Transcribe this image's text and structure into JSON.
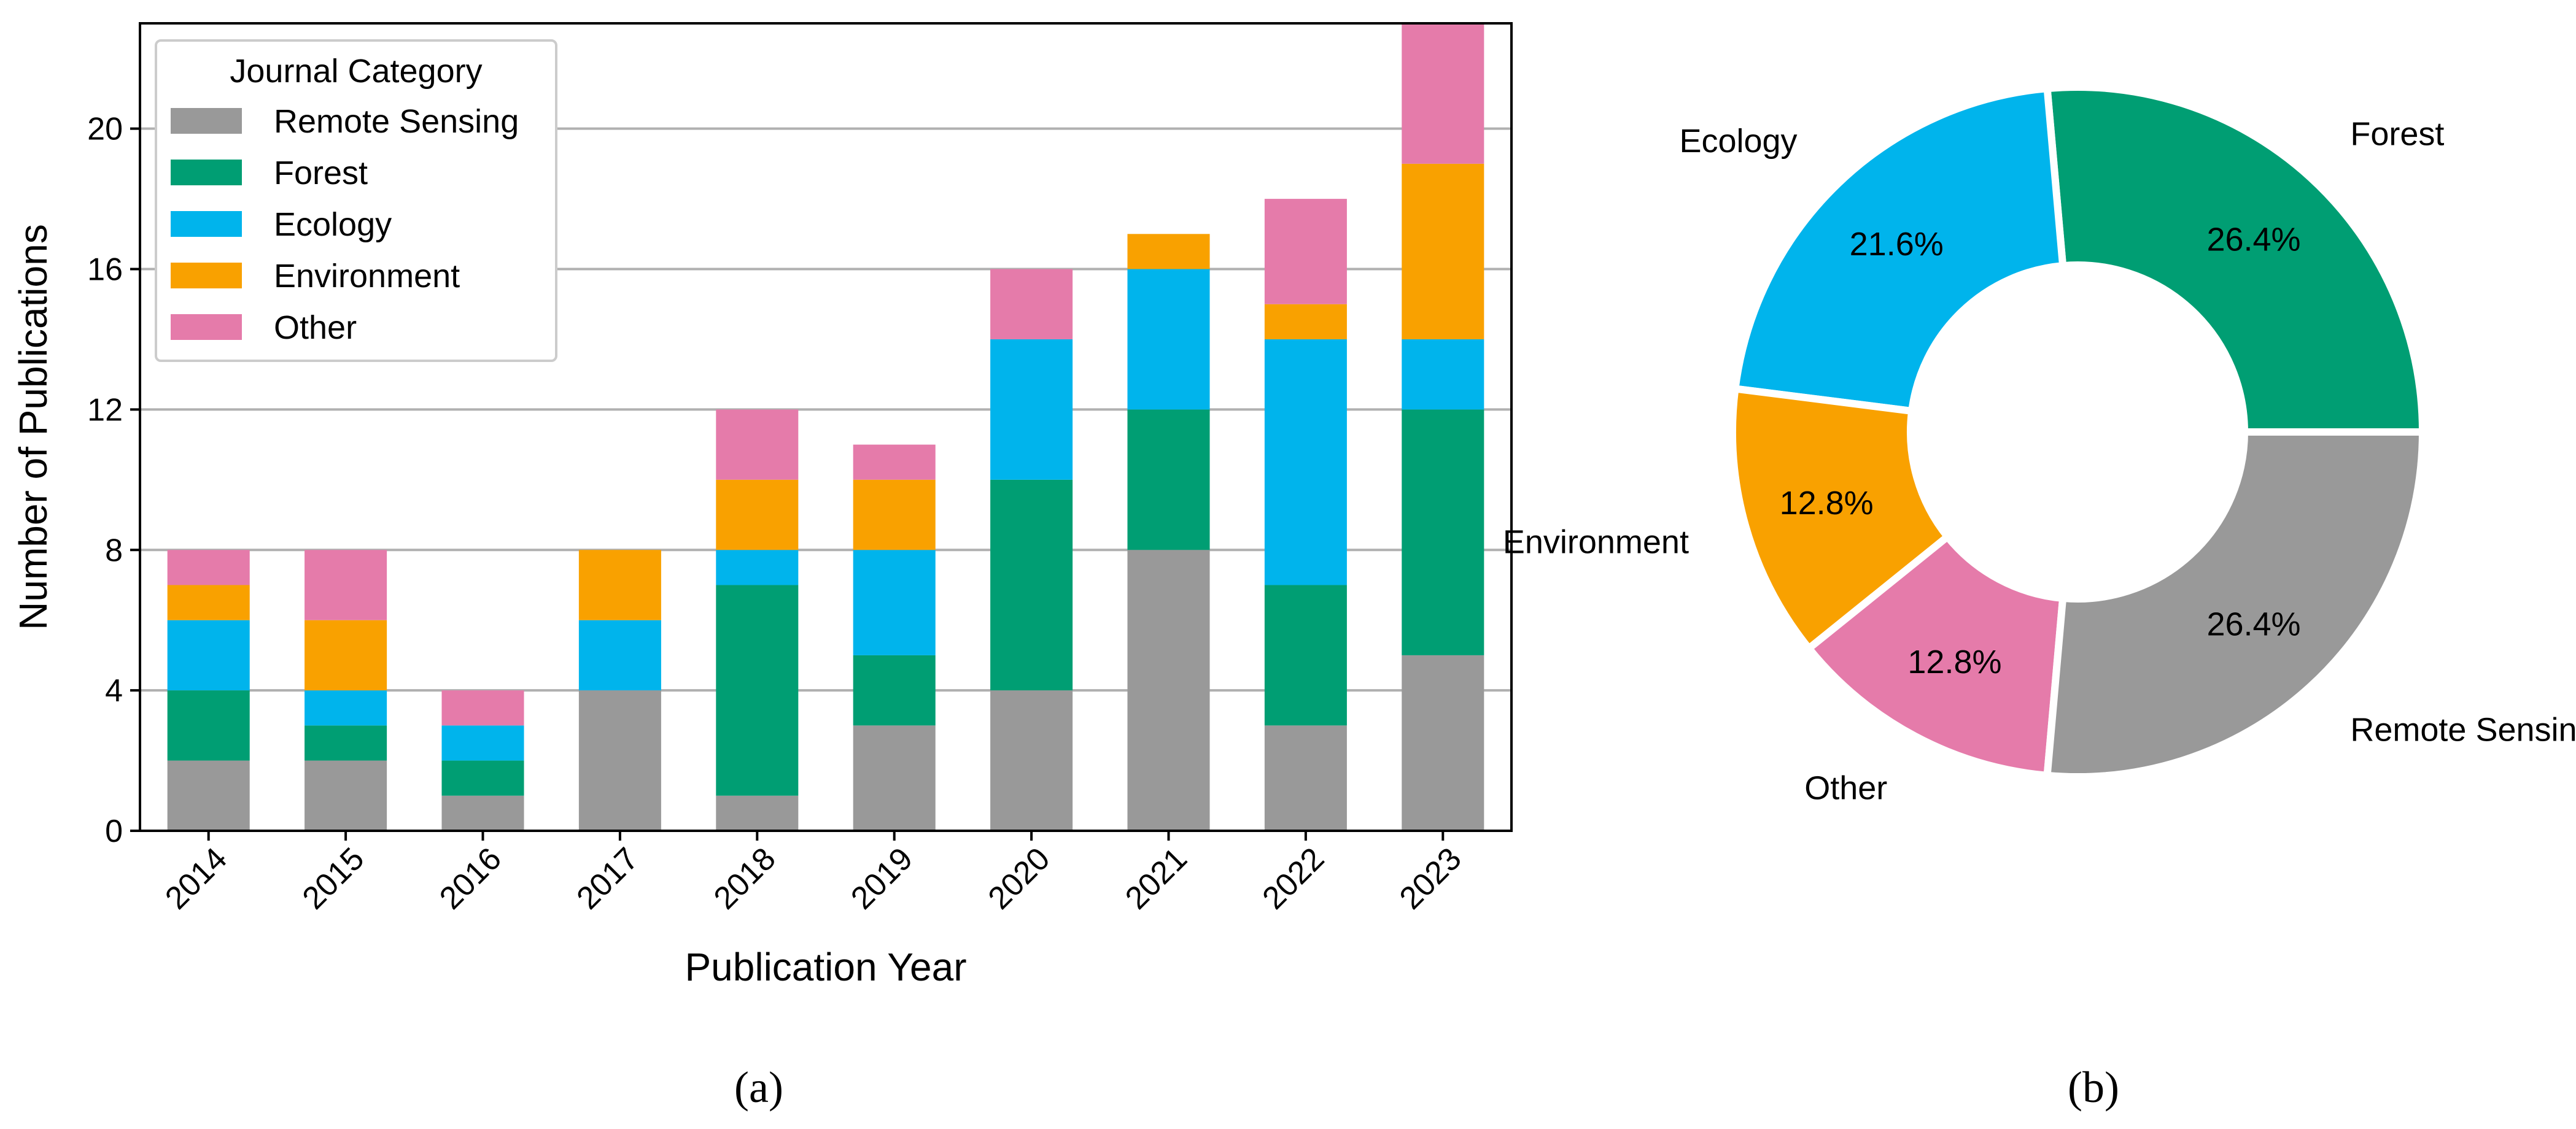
{
  "chart_data": [
    {
      "type": "bar",
      "stacked": true,
      "panel_label": "(a)",
      "title": "",
      "xlabel": "Publication Year",
      "ylabel": "Number of Publications",
      "ylim": [
        0,
        23
      ],
      "yticks": [
        0,
        4,
        8,
        12,
        16,
        20
      ],
      "grid": "horizontal",
      "legend": {
        "title": "Journal Category",
        "placement": "top-left"
      },
      "categories": [
        "2014",
        "2015",
        "2016",
        "2017",
        "2018",
        "2019",
        "2020",
        "2021",
        "2022",
        "2023"
      ],
      "series": [
        {
          "name": "Remote Sensing",
          "color": "#999999",
          "values": [
            2,
            2,
            1,
            4,
            1,
            3,
            4,
            8,
            3,
            5
          ]
        },
        {
          "name": "Forest",
          "color": "#009E73",
          "values": [
            2,
            1,
            1,
            0,
            6,
            2,
            6,
            4,
            4,
            7
          ]
        },
        {
          "name": "Ecology",
          "color": "#00B4EC",
          "values": [
            2,
            1,
            1,
            2,
            1,
            3,
            4,
            4,
            7,
            2
          ]
        },
        {
          "name": "Environment",
          "color": "#F9A100",
          "values": [
            1,
            2,
            0,
            2,
            2,
            2,
            0,
            1,
            1,
            5
          ]
        },
        {
          "name": "Other",
          "color": "#E57BAA",
          "values": [
            1,
            2,
            1,
            0,
            2,
            1,
            2,
            0,
            3,
            4
          ]
        }
      ]
    },
    {
      "type": "pie",
      "donut": true,
      "panel_label": "(b)",
      "title": "",
      "slices": [
        {
          "label": "Forest",
          "value": 26.4,
          "pct_label": "26.4%",
          "color": "#009E73"
        },
        {
          "label": "Ecology",
          "value": 21.6,
          "pct_label": "21.6%",
          "color": "#00B4EC"
        },
        {
          "label": "Environment",
          "value": 12.8,
          "pct_label": "12.8%",
          "color": "#F9A100"
        },
        {
          "label": "Other",
          "value": 12.8,
          "pct_label": "12.8%",
          "color": "#E57BAA"
        },
        {
          "label": "Remote Sensing",
          "value": 26.4,
          "pct_label": "26.4%",
          "color": "#999999"
        }
      ]
    }
  ]
}
